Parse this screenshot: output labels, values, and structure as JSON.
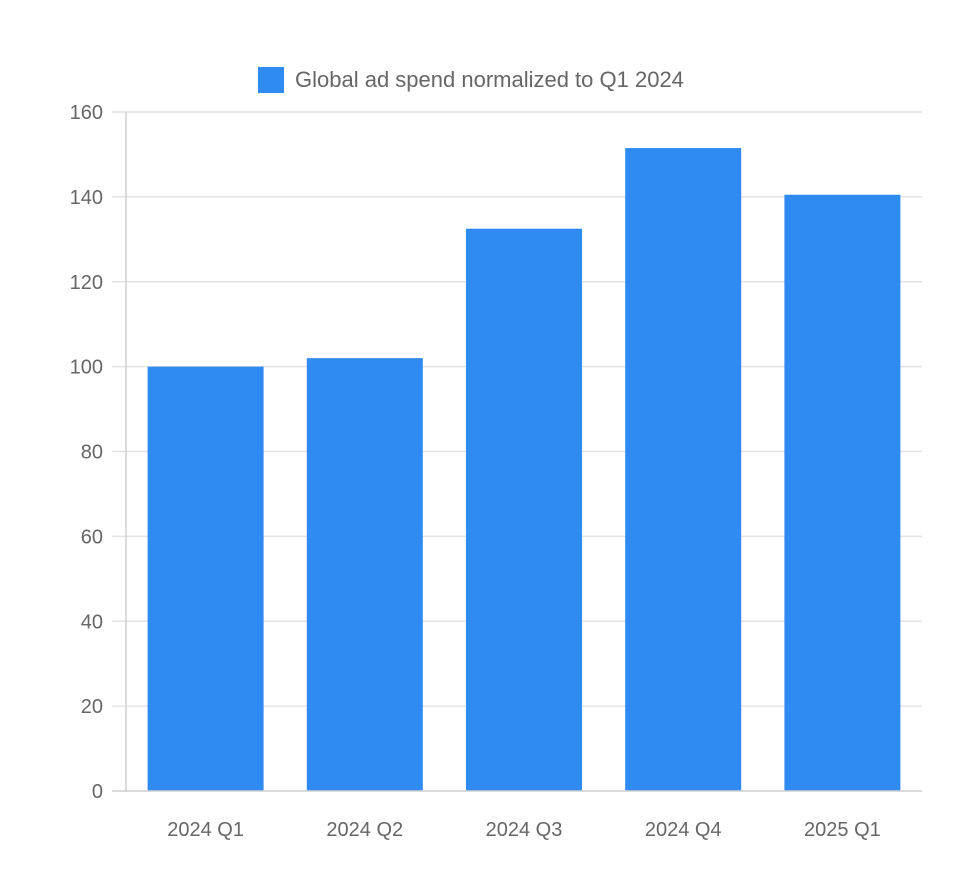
{
  "chart_data": {
    "type": "bar",
    "categories": [
      "2024 Q1",
      "2024 Q2",
      "2024 Q3",
      "2024 Q4",
      "2025 Q1"
    ],
    "series": [
      {
        "name": "Global ad spend normalized to Q1 2024",
        "values": [
          100,
          102,
          132.5,
          151.5,
          140.5
        ],
        "color": "#2f8af2"
      }
    ],
    "title": "",
    "xlabel": "",
    "ylabel": "",
    "ylim": [
      0,
      160
    ],
    "yticks": [
      0,
      20,
      40,
      60,
      80,
      100,
      120,
      140,
      160
    ],
    "grid": true,
    "legend_position": "top-center",
    "colors": {
      "grid": "#e3e3e3",
      "axis": "#cfcfcf",
      "text": "#666666"
    }
  }
}
